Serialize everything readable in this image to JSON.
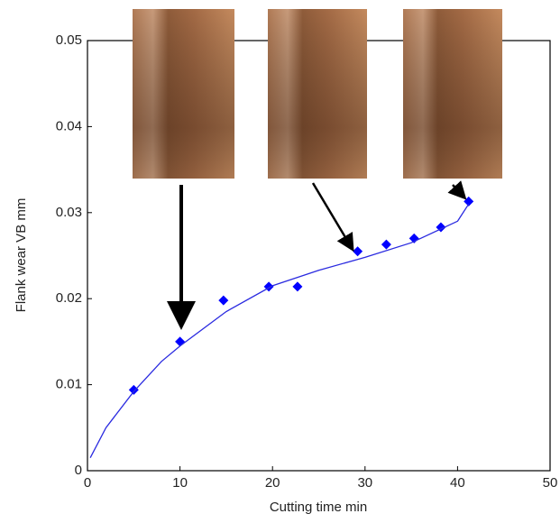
{
  "chart_data": {
    "type": "scatter",
    "x_label": "Cutting time min",
    "y_label": "Flank wear VB mm",
    "xlim": [
      0,
      50
    ],
    "xticks": [
      0,
      10,
      20,
      30,
      40,
      50
    ],
    "ylim": [
      0,
      0.05
    ],
    "yticks": [
      0,
      0.01,
      0.02,
      0.03,
      0.04,
      0.05
    ],
    "series": [
      {
        "style": "markers",
        "color": "#0000ff",
        "x": [
          5,
          10,
          14.7,
          19.6,
          22.7,
          29.2,
          32.3,
          35.3,
          38.2,
          41.2
        ],
        "values": [
          0.0094,
          0.015,
          0.0198,
          0.0214,
          0.0214,
          0.0255,
          0.0263,
          0.027,
          0.0283,
          0.0313
        ]
      },
      {
        "style": "line",
        "color": "#2a2ae0",
        "x": [
          0.3,
          2,
          5,
          8,
          10,
          15,
          20,
          25,
          30,
          35,
          40,
          41.2
        ],
        "values": [
          0.0015,
          0.005,
          0.0092,
          0.0127,
          0.0145,
          0.0185,
          0.0215,
          0.0233,
          0.0248,
          0.0265,
          0.029,
          0.031
        ]
      }
    ]
  }
}
